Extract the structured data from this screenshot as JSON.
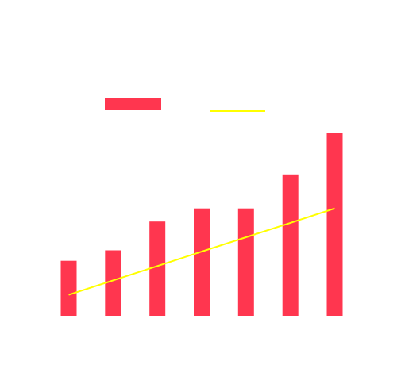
{
  "chart_data": {
    "type": "bar",
    "categories": [
      "",
      "",
      "",
      "",
      "",
      "",
      ""
    ],
    "series": [
      {
        "type": "bar",
        "color": "#ff364f",
        "values": [
          21,
          25,
          36,
          41,
          41,
          54,
          70
        ]
      },
      {
        "type": "line",
        "color": "#ffff00",
        "values": [
          8,
          13.5,
          19,
          24.5,
          30,
          35.5,
          41
        ]
      }
    ],
    "ylim": [
      0,
      70
    ],
    "grid": false,
    "legend": {
      "placement": "top",
      "entries": [
        {
          "marker": "bar",
          "color": "#ff364f"
        },
        {
          "marker": "line",
          "color": "#ffff00"
        }
      ]
    }
  }
}
